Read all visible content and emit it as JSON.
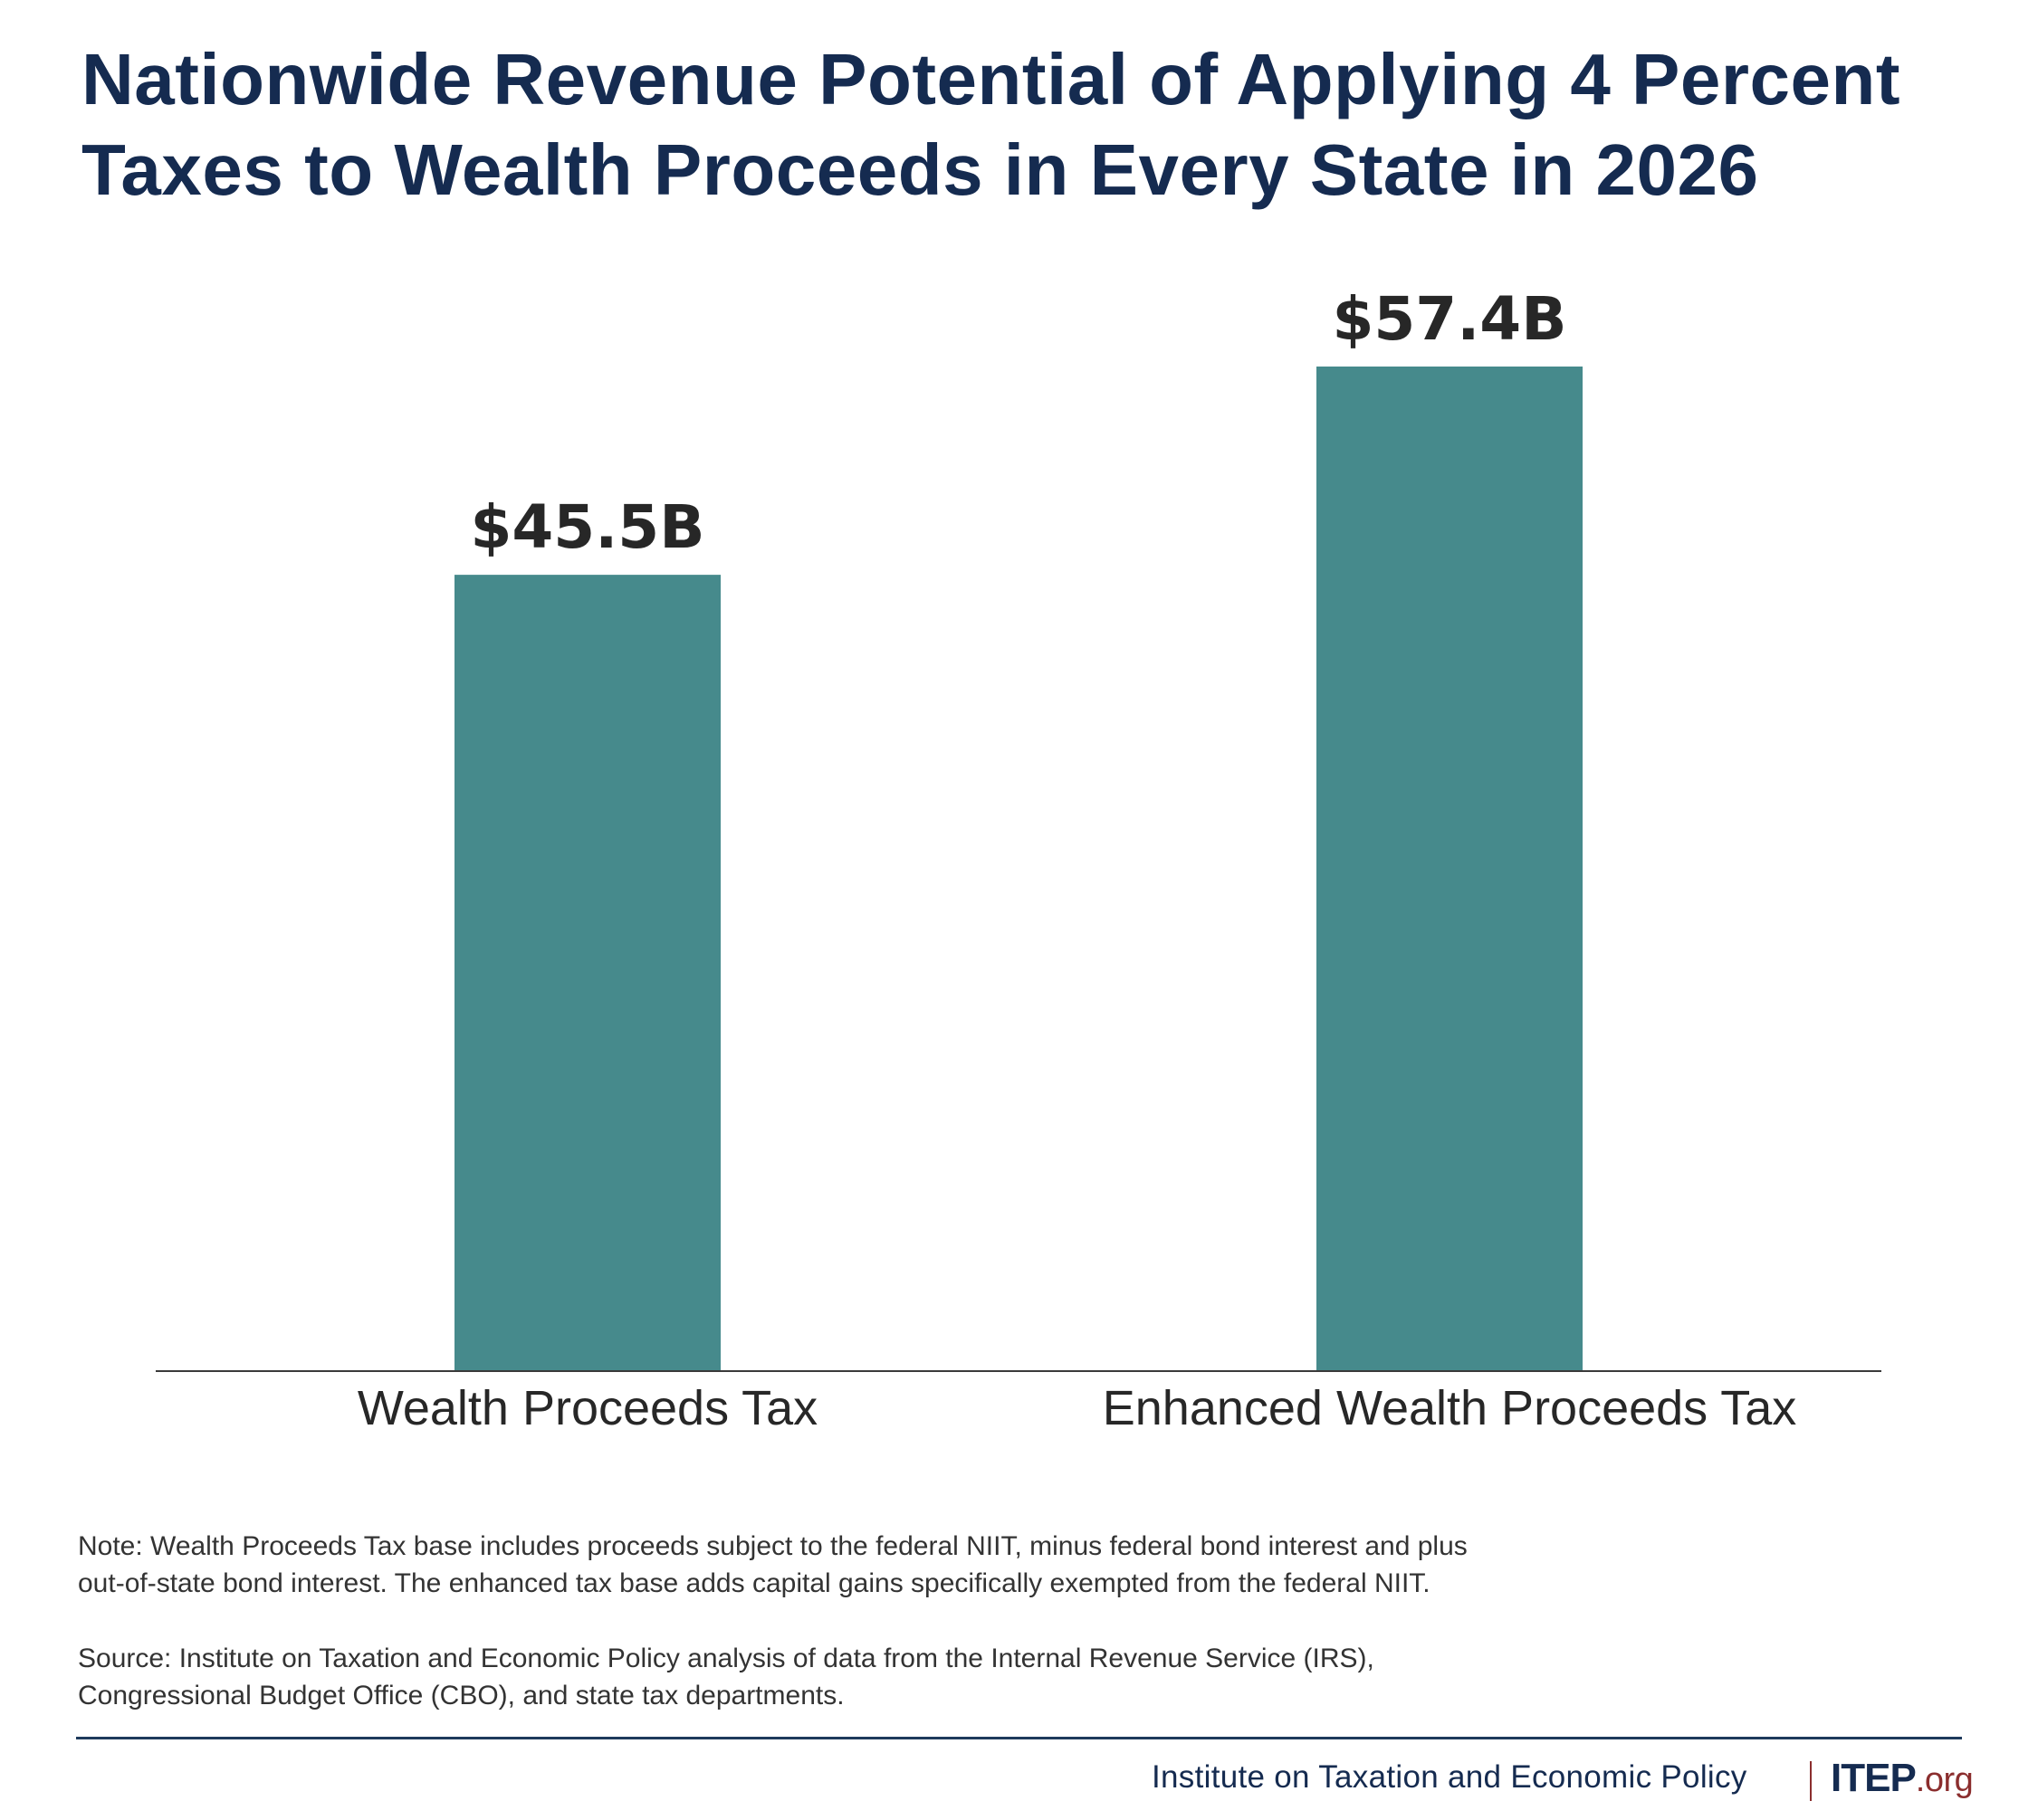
{
  "chart_data": {
    "type": "bar",
    "title": "Nationwide Revenue Potential of Applying 4 Percent Taxes to Wealth Proceeds in Every State in 2026",
    "title_lines": [
      "Nationwide Revenue Potential of Applying 4 Percent",
      "Taxes to Wealth Proceeds in Every State in 2026"
    ],
    "categories": [
      "Wealth Proceeds Tax",
      "Enhanced Wealth Proceeds Tax"
    ],
    "values": [
      45.5,
      57.4
    ],
    "value_labels": [
      "$45.5B",
      "$57.4B"
    ],
    "units": "billions of dollars",
    "xlabel": "",
    "ylabel": "",
    "ylim": [
      0,
      57.4
    ],
    "grid": false,
    "legend": "none",
    "bar_color": "#468a8c"
  },
  "notes": {
    "note_lines": [
      "Note: Wealth Proceeds Tax base includes proceeds subject to the federal NIIT, minus federal bond interest and plus",
      "out-of-state bond interest. The enhanced tax base adds capital gains specifically exempted from the federal NIIT."
    ],
    "source_lines": [
      "Source: Institute on Taxation and Economic Policy analysis of data from the Internal Revenue Service (IRS),",
      "Congressional Budget Office (CBO), and state tax departments."
    ]
  },
  "footer": {
    "organization": "Institute on Taxation and Economic Policy",
    "logo_main": "ITEP",
    "logo_suffix": ".org",
    "colors": {
      "navy": "#152b50",
      "red": "#8b2e2e"
    }
  }
}
